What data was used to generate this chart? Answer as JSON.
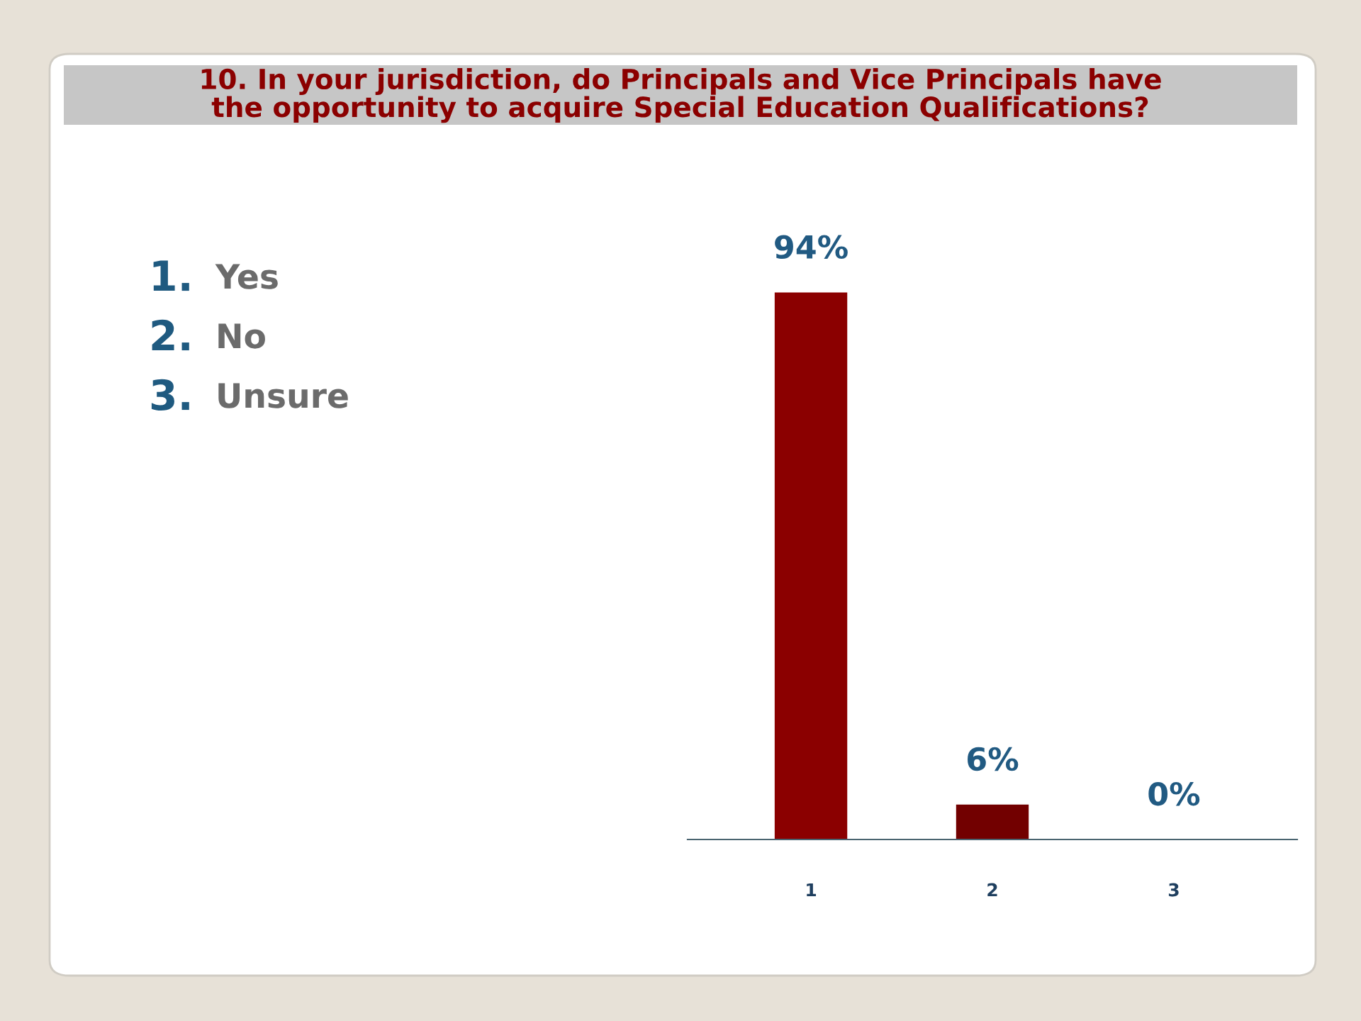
{
  "chart_data": {
    "type": "bar",
    "title": "10. In your jurisdiction, do Principals and Vice Principals have\nthe opportunity to acquire Special Education Qualifications?",
    "categories": [
      "1",
      "2",
      "3"
    ],
    "values": [
      94,
      6,
      0
    ],
    "colors": [
      "#8b0000",
      "#720000",
      "#5e8c2e"
    ],
    "value_labels": [
      "94%",
      "6%",
      "0%"
    ],
    "annotations": [
      "1. Yes",
      "2. No",
      "3. Unsure"
    ]
  }
}
